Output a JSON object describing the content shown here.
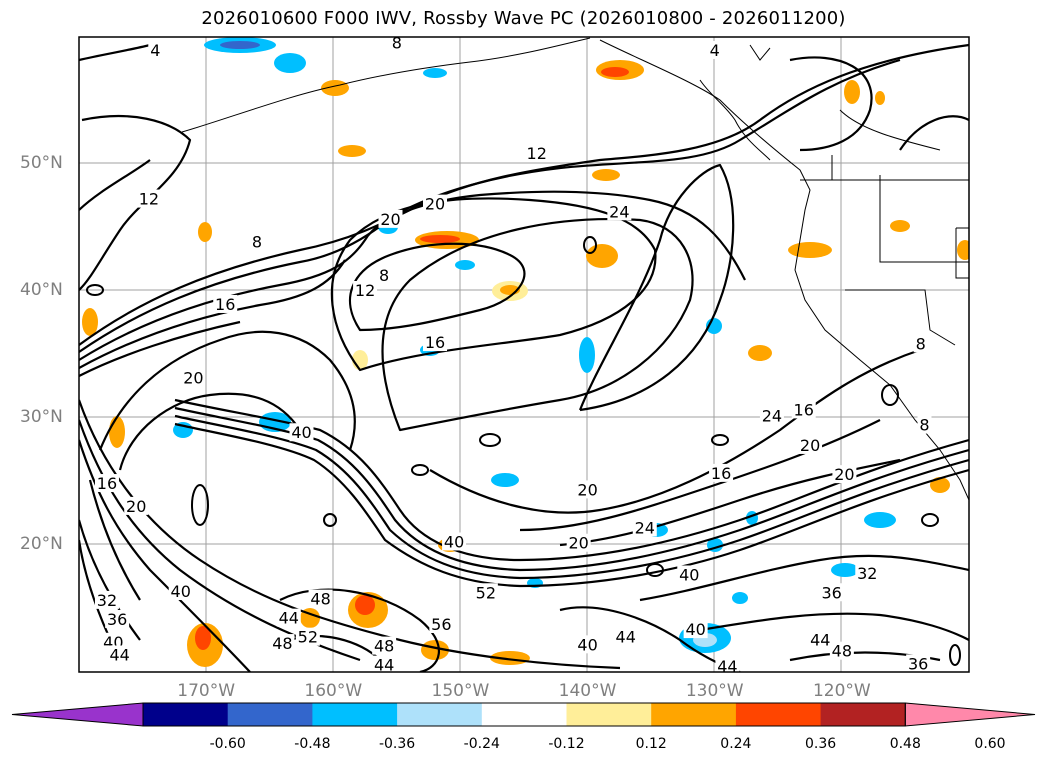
{
  "title": "2026010600 F000 IWV, Rossby Wave PC (2026010800 - 2026011200)",
  "lat_labels": [
    {
      "text": "50°N",
      "lat": 50
    },
    {
      "text": "40°N",
      "lat": 40
    },
    {
      "text": "30°N",
      "lat": 30
    },
    {
      "text": "20°N",
      "lat": 20
    }
  ],
  "lon_labels": [
    {
      "text": "170°W",
      "lon": -170
    },
    {
      "text": "160°W",
      "lon": -160
    },
    {
      "text": "150°W",
      "lon": -150
    },
    {
      "text": "140°W",
      "lon": -140
    },
    {
      "text": "130°W",
      "lon": -130
    },
    {
      "text": "120°W",
      "lon": -120
    }
  ],
  "colorbar": {
    "colors": [
      "#9933cc",
      "#00008b",
      "#3366cc",
      "#00bfff",
      "#aee1fa",
      "#ffffff",
      "#ffee99",
      "#ffa500",
      "#ff4500",
      "#b22222",
      "#ff88aa"
    ],
    "ticks": [
      "-0.60",
      "-0.48",
      "-0.36",
      "-0.24",
      "-0.12",
      "0.12",
      "0.24",
      "0.36",
      "0.48",
      "0.60"
    ]
  },
  "contour_labels": [
    {
      "t": "4",
      "lon": -174,
      "lat": 58.9
    },
    {
      "t": "4",
      "lon": -130,
      "lat": 58.9
    },
    {
      "t": "8",
      "lon": -155,
      "lat": 59.5
    },
    {
      "t": "12",
      "lon": -144,
      "lat": 50.8
    },
    {
      "t": "12",
      "lon": -174.5,
      "lat": 47.2
    },
    {
      "t": "8",
      "lon": -166,
      "lat": 43.8
    },
    {
      "t": "20",
      "lon": -155.5,
      "lat": 45.6
    },
    {
      "t": "20",
      "lon": -152,
      "lat": 46.8
    },
    {
      "t": "24",
      "lon": -137.5,
      "lat": 46.2
    },
    {
      "t": "8",
      "lon": -156,
      "lat": 41.2
    },
    {
      "t": "12",
      "lon": -157.5,
      "lat": 40
    },
    {
      "t": "16",
      "lon": -168.5,
      "lat": 38.9
    },
    {
      "t": "16",
      "lon": -152,
      "lat": 35.9
    },
    {
      "t": "20",
      "lon": -171,
      "lat": 33.1
    },
    {
      "t": "40",
      "lon": -162.5,
      "lat": 28.8
    },
    {
      "t": "24",
      "lon": -125.5,
      "lat": 30.1
    },
    {
      "t": "16",
      "lon": -123,
      "lat": 30.6
    },
    {
      "t": "20",
      "lon": -122.5,
      "lat": 27.8
    },
    {
      "t": "16",
      "lon": -129.5,
      "lat": 25.6
    },
    {
      "t": "20",
      "lon": -119.8,
      "lat": 25.5
    },
    {
      "t": "20",
      "lon": -140,
      "lat": 24.3
    },
    {
      "t": "24",
      "lon": -135.5,
      "lat": 21.3
    },
    {
      "t": "20",
      "lon": -140.7,
      "lat": 20.1
    },
    {
      "t": "16",
      "lon": -177.8,
      "lat": 24.8
    },
    {
      "t": "20",
      "lon": -175.5,
      "lat": 23
    },
    {
      "t": "40",
      "lon": -172,
      "lat": 16.3
    },
    {
      "t": "32",
      "lon": -177.8,
      "lat": 15.6
    },
    {
      "t": "36",
      "lon": -177,
      "lat": 14.1
    },
    {
      "t": "40",
      "lon": -177.3,
      "lat": 12.3
    },
    {
      "t": "44",
      "lon": -176.8,
      "lat": 11.3
    },
    {
      "t": "44",
      "lon": -163.5,
      "lat": 14.2
    },
    {
      "t": "48",
      "lon": -161,
      "lat": 15.7
    },
    {
      "t": "52",
      "lon": -162,
      "lat": 12.7
    },
    {
      "t": "48",
      "lon": -164,
      "lat": 12.2
    },
    {
      "t": "48",
      "lon": -156,
      "lat": 12
    },
    {
      "t": "44",
      "lon": -156,
      "lat": 10.5
    },
    {
      "t": "56",
      "lon": -151.5,
      "lat": 13.7
    },
    {
      "t": "52",
      "lon": -148,
      "lat": 16.2
    },
    {
      "t": "40",
      "lon": -132,
      "lat": 17.6
    },
    {
      "t": "36",
      "lon": -120.8,
      "lat": 16.2
    },
    {
      "t": "32",
      "lon": -118,
      "lat": 17.7
    },
    {
      "t": "44",
      "lon": -137,
      "lat": 12.7
    },
    {
      "t": "40",
      "lon": -140,
      "lat": 12.1
    },
    {
      "t": "40",
      "lon": -131.5,
      "lat": 13.3
    },
    {
      "t": "44",
      "lon": -129,
      "lat": 10.4
    },
    {
      "t": "44",
      "lon": -121.7,
      "lat": 12.5
    },
    {
      "t": "48",
      "lon": -120,
      "lat": 11.6
    },
    {
      "t": "36",
      "lon": -114,
      "lat": 10.6
    },
    {
      "t": "40",
      "lon": -150.5,
      "lat": 20.2
    },
    {
      "t": "8",
      "lon": -113.8,
      "lat": 35.8
    },
    {
      "t": "8",
      "lon": -113.5,
      "lat": 29.4
    }
  ]
}
